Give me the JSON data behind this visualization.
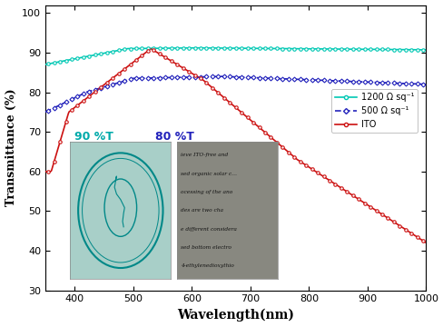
{
  "xlabel": "Wavelength(nm)",
  "ylabel": "Transmittance (%)",
  "xlim": [
    350,
    1000
  ],
  "ylim": [
    30,
    102
  ],
  "yticks": [
    30,
    40,
    50,
    60,
    70,
    80,
    90,
    100
  ],
  "xticks": [
    400,
    500,
    600,
    700,
    800,
    900,
    1000
  ],
  "bg_color": "#ffffff",
  "plot_bg": "#ffffff",
  "color_1200": "#00c8b4",
  "color_500": "#2222bb",
  "color_ITO": "#cc1111",
  "label_1200": "1200 Ω sq⁻¹",
  "label_500": "500 Ω sq⁻¹",
  "label_ITO": "ITO",
  "annotation_90": "90 %T",
  "annotation_80": "80 %T",
  "annotation_90_color": "#00aaaa",
  "annotation_80_color": "#2222bb",
  "inset_left_bg": "#a8cfc8",
  "inset_right_bg": "#888880"
}
